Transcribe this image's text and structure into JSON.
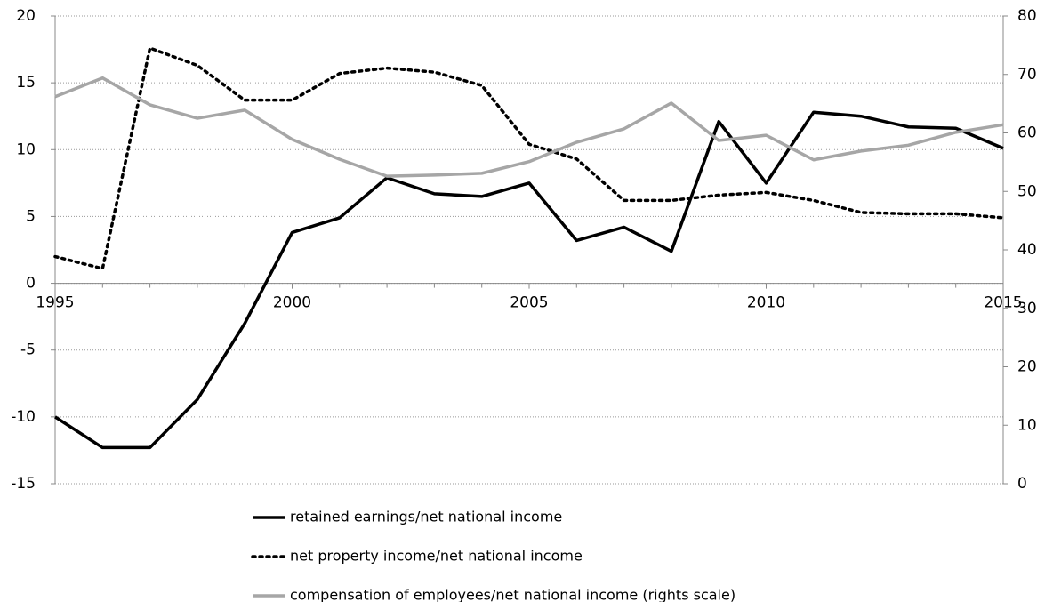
{
  "chart_data": {
    "type": "line",
    "x": [
      1995,
      1996,
      1997,
      1998,
      1999,
      2000,
      2001,
      2002,
      2003,
      2004,
      2005,
      2006,
      2007,
      2008,
      2009,
      2010,
      2011,
      2012,
      2013,
      2014,
      2015
    ],
    "xlim": [
      1995,
      2015
    ],
    "xticks": [
      1995,
      2000,
      2005,
      2010,
      2015
    ],
    "ylim": [
      -15,
      20
    ],
    "yticks": [
      -15,
      -10,
      -5,
      0,
      5,
      10,
      15,
      20
    ],
    "y2lim": [
      0,
      80
    ],
    "y2ticks": [
      0,
      10,
      20,
      30,
      40,
      50,
      60,
      70,
      80
    ],
    "grid": true,
    "legend": "bottom",
    "series": [
      {
        "name": "retained earnings/net national income",
        "color": "#000000",
        "dash": "solid",
        "values": [
          -10,
          -12.3,
          -12.3,
          -8.7,
          -3,
          3.8,
          4.9,
          7.9,
          6.7,
          6.5,
          7.5,
          3.2,
          4.2,
          2.4,
          12.1,
          7.5,
          12.8,
          12.5,
          11.7,
          11.6,
          10.1
        ]
      },
      {
        "name": "net property income/net national income",
        "color": "#000000",
        "dash": "dotted",
        "values": [
          2.0,
          1.1,
          17.6,
          16.3,
          13.7,
          13.7,
          15.7,
          16.1,
          15.8,
          14.8,
          10.4,
          9.3,
          6.2,
          6.2,
          6.6,
          6.8,
          6.2,
          5.3,
          5.2,
          5.2,
          4.9
        ]
      },
      {
        "name": "compensation of employees/net national income (rights scale)",
        "color": "#a6a6a6",
        "dash": "solid",
        "axis": "y2",
        "values": [
          66.2,
          69.4,
          64.8,
          62.5,
          63.9,
          58.9,
          55.5,
          52.6,
          52.8,
          53.1,
          55.1,
          58.4,
          60.7,
          65.1,
          58.7,
          59.6,
          55.4,
          56.9,
          57.9,
          60.1,
          61.4
        ]
      }
    ]
  }
}
